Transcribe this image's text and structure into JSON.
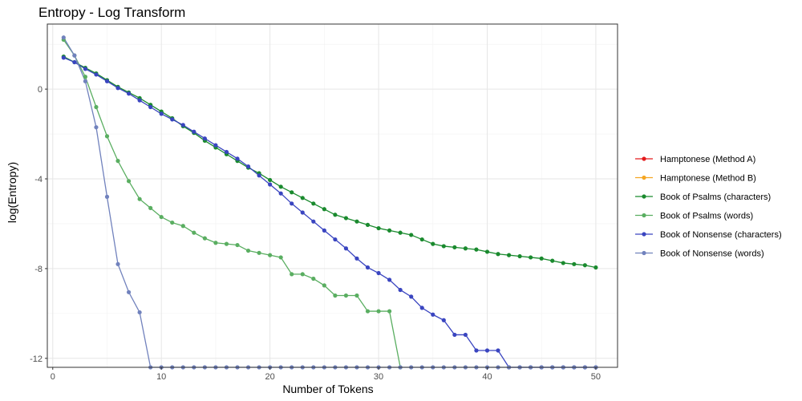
{
  "chart_data": {
    "type": "line",
    "title": "Entropy - Log Transform",
    "xlabel": "Number of Tokens",
    "ylabel": "log(Entropy)",
    "xlim": [
      -0.5,
      52
    ],
    "ylim": [
      -12.4,
      2.9
    ],
    "x_ticks": [
      0,
      10,
      20,
      30,
      40,
      50
    ],
    "x_tick_labels": [
      "0",
      "10",
      "20",
      "30",
      "40",
      "50"
    ],
    "y_ticks": [
      0,
      -4,
      -8,
      -12
    ],
    "y_tick_labels": [
      "0",
      "-4",
      "-8",
      "-12"
    ],
    "grid": true,
    "legend_position": "right",
    "series": [
      {
        "name": "Hamptonese (Method A)",
        "color": "#e41a1c",
        "x": [],
        "y": []
      },
      {
        "name": "Hamptonese (Method B)",
        "color": "#f5a623",
        "x": [],
        "y": []
      },
      {
        "name": "Book of Psalms (characters)",
        "color": "#1a8a2e",
        "x": [
          1,
          2,
          3,
          4,
          5,
          6,
          7,
          8,
          9,
          10,
          11,
          12,
          13,
          14,
          15,
          16,
          17,
          18,
          19,
          20,
          21,
          22,
          23,
          24,
          25,
          26,
          27,
          28,
          29,
          30,
          31,
          32,
          33,
          34,
          35,
          36,
          37,
          38,
          39,
          40,
          41,
          42,
          43,
          44,
          45,
          46,
          47,
          48,
          49,
          50
        ],
        "y": [
          1.45,
          1.2,
          0.95,
          0.7,
          0.4,
          0.1,
          -0.15,
          -0.4,
          -0.7,
          -1.0,
          -1.3,
          -1.65,
          -1.95,
          -2.3,
          -2.6,
          -2.9,
          -3.2,
          -3.5,
          -3.75,
          -4.05,
          -4.35,
          -4.6,
          -4.85,
          -5.1,
          -5.35,
          -5.6,
          -5.75,
          -5.9,
          -6.05,
          -6.2,
          -6.3,
          -6.4,
          -6.5,
          -6.7,
          -6.9,
          -7.0,
          -7.05,
          -7.1,
          -7.15,
          -7.25,
          -7.35,
          -7.4,
          -7.45,
          -7.5,
          -7.55,
          -7.65,
          -7.75,
          -7.8,
          -7.85,
          -7.95
        ]
      },
      {
        "name": "Book of Psalms (words)",
        "color": "#5aae61",
        "x": [
          1,
          2,
          3,
          4,
          5,
          6,
          7,
          8,
          9,
          10,
          11,
          12,
          13,
          14,
          15,
          16,
          17,
          18,
          19,
          20,
          21,
          22,
          23,
          24,
          25,
          26,
          27,
          28,
          29,
          30,
          31,
          32
        ],
        "y": [
          2.2,
          1.5,
          0.55,
          -0.8,
          -2.1,
          -3.2,
          -4.1,
          -4.9,
          -5.3,
          -5.7,
          -5.95,
          -6.1,
          -6.4,
          -6.65,
          -6.85,
          -6.9,
          -6.95,
          -7.2,
          -7.3,
          -7.4,
          -7.5,
          -8.25,
          -8.25,
          -8.45,
          -8.75,
          -9.2,
          -9.2,
          -9.2,
          -9.9,
          -9.9,
          -9.9,
          -12.4
        ]
      },
      {
        "name": "Book of Nonsense (characters)",
        "color": "#3a45c0",
        "x": [
          1,
          2,
          3,
          4,
          5,
          6,
          7,
          8,
          9,
          10,
          11,
          12,
          13,
          14,
          15,
          16,
          17,
          18,
          19,
          20,
          21,
          22,
          23,
          24,
          25,
          26,
          27,
          28,
          29,
          30,
          31,
          32,
          33,
          34,
          35,
          36,
          37,
          38,
          39,
          40,
          41,
          42,
          43,
          44,
          45,
          46,
          47,
          48,
          49,
          50
        ],
        "y": [
          1.4,
          1.2,
          0.9,
          0.65,
          0.35,
          0.05,
          -0.2,
          -0.5,
          -0.8,
          -1.1,
          -1.35,
          -1.6,
          -1.9,
          -2.2,
          -2.5,
          -2.8,
          -3.1,
          -3.45,
          -3.85,
          -4.25,
          -4.65,
          -5.1,
          -5.5,
          -5.9,
          -6.3,
          -6.7,
          -7.1,
          -7.55,
          -7.95,
          -8.2,
          -8.5,
          -8.95,
          -9.25,
          -9.75,
          -10.05,
          -10.3,
          -10.95,
          -10.95,
          -11.65,
          -11.65,
          -11.65,
          -12.4,
          -12.4,
          -12.4,
          -12.4,
          -12.4,
          -12.4,
          -12.4,
          -12.4,
          -12.4
        ]
      },
      {
        "name": "Book of Nonsense (words)",
        "color": "#7182bd",
        "x": [
          1,
          2,
          3,
          4,
          5,
          6,
          7,
          8,
          9,
          10,
          11,
          12,
          13,
          14,
          15,
          16,
          17,
          18,
          19,
          20,
          21,
          22,
          23,
          24,
          25,
          26,
          27,
          28,
          29,
          30,
          31,
          32,
          33,
          34,
          35,
          36,
          37,
          38,
          39,
          40,
          41,
          42,
          43,
          44,
          45,
          46,
          47,
          48,
          49,
          50
        ],
        "y": [
          2.3,
          1.5,
          0.35,
          -1.7,
          -4.8,
          -7.8,
          -9.05,
          -9.95,
          -12.4,
          -12.4,
          -12.4,
          -12.4,
          -12.4,
          -12.4,
          -12.4,
          -12.4,
          -12.4,
          -12.4,
          -12.4,
          -12.4,
          -12.4,
          -12.4,
          -12.4,
          -12.4,
          -12.4,
          -12.4,
          -12.4,
          -12.4,
          -12.4,
          -12.4,
          -12.4,
          -12.4,
          -12.4,
          -12.4,
          -12.4,
          -12.4,
          -12.4,
          -12.4,
          -12.4,
          -12.4,
          -12.4,
          -12.4,
          -12.4,
          -12.4,
          -12.4,
          -12.4,
          -12.4,
          -12.4,
          -12.4,
          -12.4
        ]
      }
    ]
  }
}
